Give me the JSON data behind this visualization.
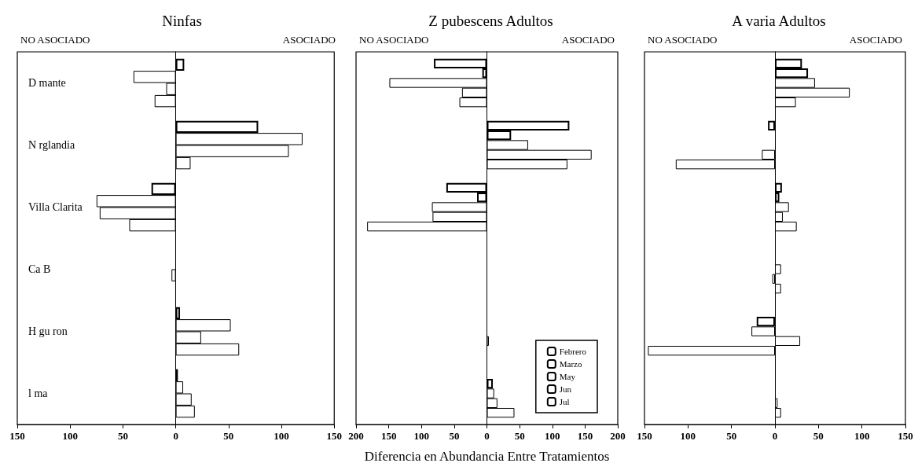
{
  "chart_data": [
    {
      "type": "bar",
      "orientation": "horizontal",
      "title": "Ninfas",
      "annotations": [
        "NO ASOCIADO",
        "ASOCIADO"
      ],
      "categories": [
        "D mante",
        "N rglandia",
        "Villa Clarita",
        "Ca B",
        "H gu ron",
        "l ma"
      ],
      "series": [
        {
          "color": "#ffffff",
          "values": [
            8,
            78,
            -23,
            0,
            4,
            2
          ]
        },
        {
          "color": "#ffffff",
          "values": [
            -40,
            120,
            -75,
            0,
            52,
            7
          ]
        },
        {
          "color": "#ffffff",
          "values": [
            -9,
            107,
            -72,
            -4,
            24,
            15
          ]
        },
        {
          "color": "#ffffff",
          "values": [
            -20,
            14,
            -44,
            0,
            60,
            18
          ]
        }
      ],
      "xlim": [
        -150,
        150
      ],
      "xticks": [
        {
          "value": -150,
          "label": "150"
        },
        {
          "value": -100,
          "label": "100"
        },
        {
          "value": -50,
          "label": "50"
        },
        0,
        50,
        100,
        150
      ],
      "legend": false
    },
    {
      "type": "bar",
      "orientation": "horizontal",
      "title": "Z pubescens Adultos",
      "annotations": [
        "NO ASOCIADO",
        "ASOCIADO"
      ],
      "xlabel": "Diferencia en Abundancia Entre Tratamientos",
      "categories": [
        "D mante",
        "N rglandia",
        "Villa Clarita",
        "Ca B",
        "H gu ron",
        "l ma"
      ],
      "series": [
        {
          "name": "Febrero",
          "color": "#ffffff",
          "values": [
            -81,
            126,
            -62,
            0,
            0,
            0
          ]
        },
        {
          "name": "Marzo",
          "color": "#ffffff",
          "values": [
            -7,
            37,
            -15,
            0,
            0,
            9
          ]
        },
        {
          "name": "May",
          "color": "#ffffff",
          "values": [
            -149,
            63,
            -84,
            0,
            0,
            11
          ]
        },
        {
          "name": "Jun",
          "color": "#ffffff",
          "values": [
            -38,
            160,
            -83,
            0,
            3,
            16
          ]
        },
        {
          "name": "Jul",
          "color": "#ffffff",
          "values": [
            -42,
            123,
            -183,
            0,
            0,
            42
          ]
        }
      ],
      "xlim": [
        -200,
        200
      ],
      "xticks": [
        {
          "value": -200,
          "label": "200"
        },
        {
          "value": -150,
          "label": "150"
        },
        {
          "value": -100,
          "label": "100"
        },
        {
          "value": -50,
          "label": "50"
        },
        0,
        50,
        100,
        150,
        200
      ],
      "tick_labels": "x",
      "legend": "bottom right"
    },
    {
      "type": "bar",
      "orientation": "horizontal",
      "title": "A varia Adultos",
      "annotations": [
        "NO ASOCIADO",
        "ASOCIADO"
      ],
      "categories": [
        "D mante",
        "N rglandia",
        "Villa Clarita",
        "Ca B",
        "H gu ron",
        "l ma"
      ],
      "series": [
        {
          "color": "#ffffff",
          "values": [
            31,
            -8,
            8,
            0,
            0,
            0
          ]
        },
        {
          "color": "#ffffff",
          "values": [
            38,
            0,
            5,
            0,
            -21,
            0
          ]
        },
        {
          "color": "#ffffff",
          "values": [
            46,
            0,
            16,
            7,
            -27,
            0
          ]
        },
        {
          "color": "#ffffff",
          "values": [
            86,
            -15,
            9,
            -3,
            29,
            3
          ]
        },
        {
          "color": "#ffffff",
          "values": [
            24,
            -114,
            25,
            7,
            -146,
            7
          ]
        }
      ],
      "xlim": [
        -150,
        150
      ],
      "xticks": [
        {
          "value": -150,
          "label": "150"
        },
        {
          "value": -100,
          "label": "100"
        },
        {
          "value": -50,
          "label": "50"
        },
        0,
        50,
        100,
        150
      ],
      "tick_labels": "x",
      "legend": false
    }
  ]
}
